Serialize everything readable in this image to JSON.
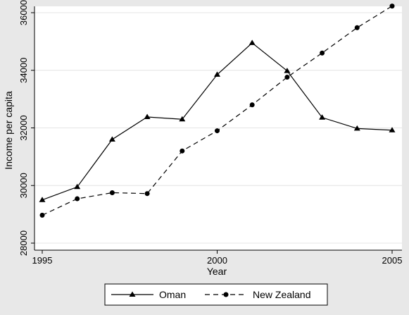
{
  "chart_data": {
    "type": "line",
    "x": [
      1995,
      1996,
      1997,
      1998,
      1999,
      2000,
      2001,
      2002,
      2003,
      2004,
      2005
    ],
    "series": [
      {
        "name": "Oman",
        "values": [
          29500,
          29950,
          31600,
          32380,
          32300,
          33850,
          34950,
          33980,
          32360,
          31980,
          31920
        ],
        "line_style": "solid",
        "marker": "triangle"
      },
      {
        "name": "New Zealand",
        "values": [
          28970,
          29540,
          29750,
          29720,
          31200,
          31900,
          32800,
          33760,
          34600,
          35480,
          36230
        ],
        "line_style": "dashed",
        "marker": "circle"
      }
    ],
    "xlabel": "Year",
    "ylabel": "Income per capita",
    "xticks": [
      1995,
      2000,
      2005
    ],
    "yticks": [
      28000,
      30000,
      32000,
      34000,
      36000
    ],
    "xlim": [
      1995,
      2005
    ],
    "ylim": [
      28000,
      36000
    ],
    "grid": "horizontal",
    "legend_position": "bottom",
    "colors": {
      "background": "#e8e8e8",
      "plot_area": "#ffffff",
      "grid": "#e4e4e4",
      "lines": "#000000"
    }
  }
}
